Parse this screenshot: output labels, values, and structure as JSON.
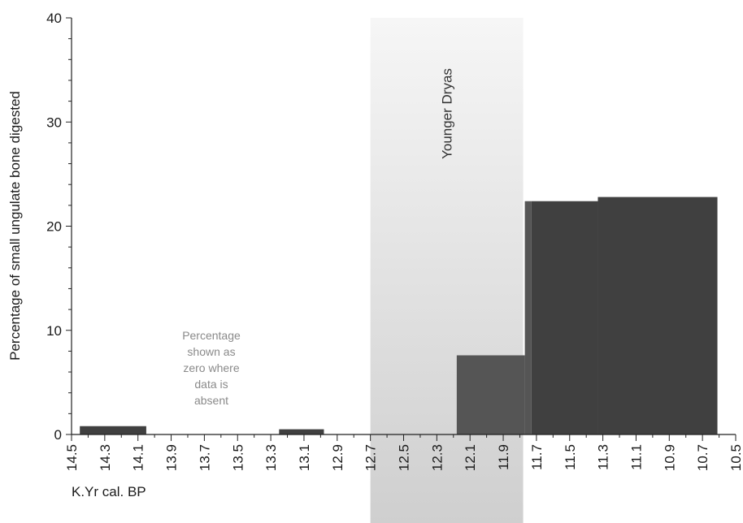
{
  "chart_data": {
    "type": "bar",
    "title": "",
    "xlabel": "K.Yr cal. BP",
    "ylabel": "Percentage of small ungulate bone digested",
    "xlim": [
      14.5,
      10.5
    ],
    "ylim": [
      0,
      40
    ],
    "x_ticks": [
      "14.5",
      "14.3",
      "14.1",
      "13.9",
      "13.7",
      "13.5",
      "13.3",
      "13.1",
      "12.9",
      "12.7",
      "12.5",
      "12.3",
      "12.1",
      "11.9",
      "11.7",
      "11.5",
      "11.3",
      "11.1",
      "10.9",
      "10.7",
      "10.5"
    ],
    "y_ticks": [
      "0",
      "10",
      "20",
      "30",
      "40"
    ],
    "grid": false,
    "bars": [
      {
        "x_start": 14.45,
        "x_end": 14.05,
        "value": 0.8,
        "color": "#404040"
      },
      {
        "x_start": 13.25,
        "x_end": 12.98,
        "value": 0.5,
        "color": "#404040"
      },
      {
        "x_start": 12.18,
        "x_end": 11.77,
        "value": 7.6,
        "color": "#555555"
      },
      {
        "x_start": 11.77,
        "x_end": 11.73,
        "value": 22.4,
        "color": "#555555"
      },
      {
        "x_start": 11.73,
        "x_end": 11.33,
        "value": 22.4,
        "color": "#404040"
      },
      {
        "x_start": 11.33,
        "x_end": 10.61,
        "value": 22.8,
        "color": "#404040"
      }
    ],
    "regions": [
      {
        "label": "Younger Dryas",
        "x_start": 12.7,
        "x_end": 11.78
      }
    ],
    "annotation": [
      "Percentage",
      "shown as",
      "zero where",
      "data is",
      "absent"
    ]
  }
}
